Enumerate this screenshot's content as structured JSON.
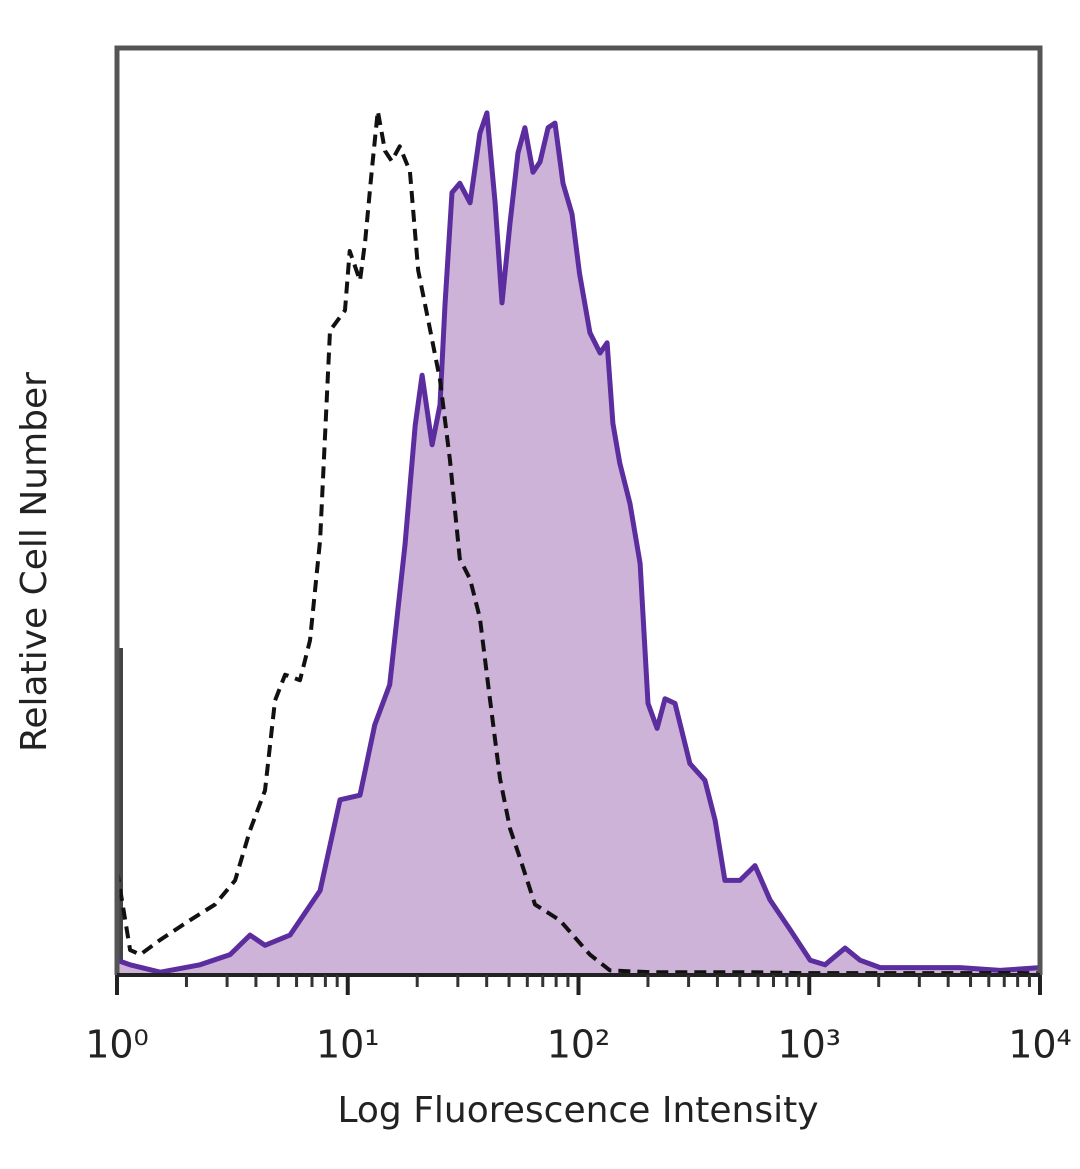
{
  "chart_data": {
    "type": "line",
    "x_label": "Log Fluorescence Intensity",
    "y_label": "Relative Cell Number",
    "xscale": "log",
    "xlim": [
      1,
      10000
    ],
    "ylim": [
      0,
      100
    ],
    "xticks": [
      {
        "value": 1,
        "label": "10⁰"
      },
      {
        "value": 10,
        "label": "10¹"
      },
      {
        "value": 100,
        "label": "10²"
      },
      {
        "value": 1000,
        "label": "10³"
      },
      {
        "value": 10000,
        "label": "10⁴"
      }
    ],
    "xminorticks": [
      2,
      3,
      4,
      5,
      6,
      7,
      8,
      9,
      20,
      30,
      40,
      50,
      60,
      70,
      80,
      90,
      200,
      300,
      400,
      500,
      600,
      700,
      800,
      900,
      2000,
      3000,
      4000,
      5000,
      6000,
      7000,
      8000,
      9000
    ],
    "series": [
      {
        "color": "#5b2d9e",
        "fill": "#cdb3d8",
        "dashed": false,
        "x": [
          1.0,
          1.14,
          1.54,
          2.29,
          3.09,
          3.77,
          4.38,
          5.62,
          7.59,
          9.26,
          11.3,
          13.1,
          15.2,
          17.7,
          19.6,
          21.0,
          23.2,
          25.1,
          26.4,
          28.3,
          30.6,
          33.9,
          37.4,
          40.1,
          43.5,
          46.6,
          50.5,
          54.7,
          58.6,
          63.5,
          68.1,
          73.8,
          79.1,
          85.7,
          93.7,
          101,
          112,
          124,
          133,
          141,
          151,
          167,
          185,
          200,
          219,
          237,
          262,
          304,
          353,
          391,
          431,
          501,
          582,
          676,
          826,
          1010,
          1170,
          1430,
          1660,
          2030,
          3020,
          4500,
          6710,
          10000
        ],
        "values": [
          1.6,
          1.1,
          0.3,
          1.1,
          2.2,
          4.3,
          3.2,
          4.3,
          9.1,
          18.9,
          19.4,
          27.0,
          31.3,
          46.4,
          59.3,
          64.7,
          57.2,
          61.5,
          72.3,
          84.4,
          85.4,
          83.3,
          90.8,
          93.0,
          83.3,
          72.5,
          81.1,
          88.7,
          91.4,
          86.6,
          87.7,
          91.4,
          91.9,
          85.4,
          82.1,
          75.7,
          69.3,
          67.1,
          68.2,
          59.5,
          55.2,
          50.9,
          44.4,
          29.3,
          26.6,
          29.8,
          29.3,
          22.8,
          21.0,
          16.7,
          10.2,
          10.2,
          11.8,
          8.1,
          4.9,
          1.6,
          1.1,
          2.9,
          1.6,
          0.8,
          0.8,
          0.8,
          0.5,
          0.8
        ]
      },
      {
        "color": "#111111",
        "dashed": true,
        "x": [
          1.0,
          1.05,
          1.14,
          1.26,
          1.54,
          2.07,
          2.66,
          3.25,
          3.77,
          4.38,
          4.84,
          5.35,
          6.21,
          6.86,
          7.59,
          8.38,
          9.73,
          10.2,
          11.3,
          11.9,
          12.7,
          13.5,
          14.5,
          15.5,
          16.8,
          18.6,
          20.2,
          22.3,
          25.1,
          27.7,
          30.6,
          33.9,
          37.4,
          41.3,
          45.7,
          50.5,
          55.8,
          64.8,
          83.1,
          112,
          137,
          204,
          336,
          554,
          912,
          1500,
          2470,
          4500,
          10000
        ],
        "values": [
          11.3,
          8.1,
          2.7,
          2.2,
          3.8,
          5.9,
          7.6,
          10.2,
          15.6,
          19.9,
          29.6,
          32.4,
          31.8,
          36.1,
          46.9,
          69.5,
          71.7,
          78.1,
          74.9,
          79.2,
          86.7,
          93.2,
          88.9,
          87.8,
          89.4,
          86.7,
          76.0,
          70.7,
          64.2,
          55.6,
          44.9,
          42.7,
          38.5,
          29.8,
          21.2,
          15.8,
          12.6,
          7.6,
          5.9,
          2.2,
          0.5,
          0.3,
          0.3,
          0.3,
          0.2,
          0.2,
          0.2,
          0.2,
          0.2
        ]
      }
    ]
  }
}
